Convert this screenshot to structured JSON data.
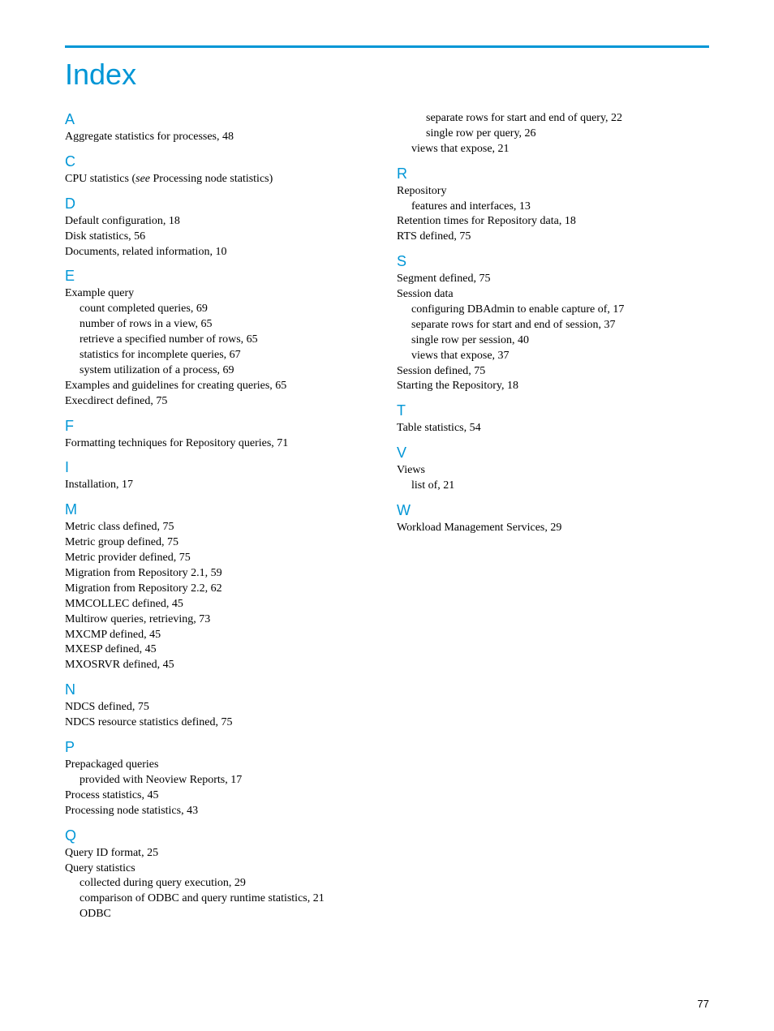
{
  "title": "Index",
  "page_number": "77",
  "colors": {
    "accent": "#0096d6",
    "text": "#000000",
    "background": "#ffffff"
  },
  "left_column": {
    "A": {
      "letter": "A",
      "entries": [
        {
          "text": "Aggregate statistics for processes, 48",
          "indent": 0
        }
      ]
    },
    "C": {
      "letter": "C",
      "entries": [
        {
          "prefix": "CPU statistics (",
          "italic": "see",
          "suffix": " Processing node statistics)",
          "indent": 0
        }
      ]
    },
    "D": {
      "letter": "D",
      "entries": [
        {
          "text": "Default configuration, 18",
          "indent": 0
        },
        {
          "text": "Disk statistics, 56",
          "indent": 0
        },
        {
          "text": "Documents, related information, 10",
          "indent": 0
        }
      ]
    },
    "E": {
      "letter": "E",
      "entries": [
        {
          "text": "Example query",
          "indent": 0
        },
        {
          "text": "count completed queries, 69",
          "indent": 1
        },
        {
          "text": "number of rows in a view, 65",
          "indent": 1
        },
        {
          "text": "retrieve a specified number of rows, 65",
          "indent": 1
        },
        {
          "text": "statistics for incomplete queries, 67",
          "indent": 1
        },
        {
          "text": "system utilization of a process, 69",
          "indent": 1
        },
        {
          "text": "Examples and guidelines for creating queries, 65",
          "indent": 0
        },
        {
          "text": "Execdirect defined, 75",
          "indent": 0
        }
      ]
    },
    "F": {
      "letter": "F",
      "entries": [
        {
          "text": "Formatting techniques for Repository queries, 71",
          "indent": 0
        }
      ]
    },
    "I": {
      "letter": "I",
      "entries": [
        {
          "text": "Installation, 17",
          "indent": 0
        }
      ]
    },
    "M": {
      "letter": "M",
      "entries": [
        {
          "text": "Metric class defined, 75",
          "indent": 0
        },
        {
          "text": "Metric group defined, 75",
          "indent": 0
        },
        {
          "text": "Metric provider defined, 75",
          "indent": 0
        },
        {
          "text": "Migration from Repository 2.1, 59",
          "indent": 0
        },
        {
          "text": "Migration from Repository 2.2, 62",
          "indent": 0
        },
        {
          "text": "MMCOLLEC defined, 45",
          "indent": 0
        },
        {
          "text": "Multirow queries, retrieving, 73",
          "indent": 0
        },
        {
          "text": "MXCMP defined, 45",
          "indent": 0
        },
        {
          "text": "MXESP defined, 45",
          "indent": 0
        },
        {
          "text": "MXOSRVR defined, 45",
          "indent": 0
        }
      ]
    },
    "N": {
      "letter": "N",
      "entries": [
        {
          "text": "NDCS defined, 75",
          "indent": 0
        },
        {
          "text": "NDCS resource statistics defined, 75",
          "indent": 0
        }
      ]
    },
    "P": {
      "letter": "P",
      "entries": [
        {
          "text": "Prepackaged queries",
          "indent": 0
        },
        {
          "text": "provided with Neoview Reports, 17",
          "indent": 1
        },
        {
          "text": "Process statistics, 45",
          "indent": 0
        },
        {
          "text": "Processing node statistics, 43",
          "indent": 0
        }
      ]
    },
    "Q": {
      "letter": "Q",
      "entries": [
        {
          "text": "Query ID format, 25",
          "indent": 0
        },
        {
          "text": "Query statistics",
          "indent": 0
        },
        {
          "text": "collected during query execution, 29",
          "indent": 1
        },
        {
          "text": "comparison of ODBC and query runtime statistics, 21",
          "indent": 1
        },
        {
          "text": "ODBC",
          "indent": 1
        }
      ]
    }
  },
  "right_column": {
    "Q_continued": {
      "entries": [
        {
          "text": "separate rows for start and end of query, 22",
          "indent": 2
        },
        {
          "text": "single row per query, 26",
          "indent": 2
        },
        {
          "text": "views that expose, 21",
          "indent": 1
        }
      ]
    },
    "R": {
      "letter": "R",
      "entries": [
        {
          "text": "Repository",
          "indent": 0
        },
        {
          "text": "features and interfaces, 13",
          "indent": 1
        },
        {
          "text": "Retention times for Repository data, 18",
          "indent": 0
        },
        {
          "text": "RTS defined, 75",
          "indent": 0
        }
      ]
    },
    "S": {
      "letter": "S",
      "entries": [
        {
          "text": "Segment defined, 75",
          "indent": 0
        },
        {
          "text": "Session data",
          "indent": 0
        },
        {
          "text": "configuring DBAdmin to enable capture of, 17",
          "indent": 1
        },
        {
          "text": "separate rows for start and end of session, 37",
          "indent": 1
        },
        {
          "text": "single row per session, 40",
          "indent": 1
        },
        {
          "text": "views that expose, 37",
          "indent": 1
        },
        {
          "text": "Session defined, 75",
          "indent": 0
        },
        {
          "text": "Starting the Repository, 18",
          "indent": 0
        }
      ]
    },
    "T": {
      "letter": "T",
      "entries": [
        {
          "text": "Table statistics, 54",
          "indent": 0
        }
      ]
    },
    "V": {
      "letter": "V",
      "entries": [
        {
          "text": "Views",
          "indent": 0
        },
        {
          "text": "list of, 21",
          "indent": 1
        }
      ]
    },
    "W": {
      "letter": "W",
      "entries": [
        {
          "text": "Workload Management Services, 29",
          "indent": 0
        }
      ]
    }
  }
}
